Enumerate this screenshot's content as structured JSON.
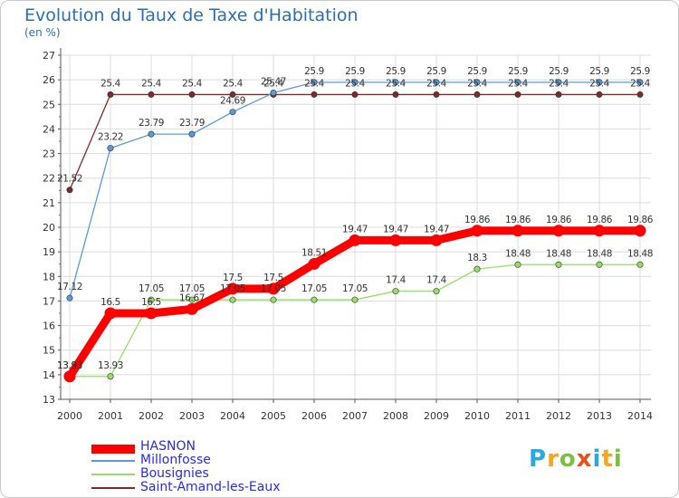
{
  "header": {
    "title": "Evolution du Taux de Taxe d'Habitation",
    "unit": "(en %)"
  },
  "chart_data": {
    "type": "line",
    "title": "Evolution du Taux de Taxe d'Habitation",
    "ylabel": "(en %)",
    "xlabel": "",
    "x": [
      "2000",
      "2001",
      "2002",
      "2003",
      "2004",
      "2005",
      "2006",
      "2007",
      "2008",
      "2009",
      "2010",
      "2011",
      "2012",
      "2013",
      "2014"
    ],
    "ylim": [
      13,
      27
    ],
    "yticks": [
      "13",
      "14",
      "15",
      "16",
      "17",
      "18",
      "19",
      "20",
      "21",
      "22",
      "23",
      "24",
      "25",
      "26",
      "27"
    ],
    "grid": true,
    "legend_position": "bottom-left",
    "series": [
      {
        "name": "HASNON",
        "color": "#ff0000",
        "values": [
          13.93,
          16.5,
          16.5,
          16.67,
          17.5,
          17.5,
          18.51,
          19.47,
          19.47,
          19.47,
          19.86,
          19.86,
          19.86,
          19.86,
          19.86
        ],
        "labels": [
          "13.93",
          "16.5",
          "16.5",
          "16.67",
          "17.5",
          "17.5",
          "18.51",
          "19.47",
          "19.47",
          "19.47",
          "19.86",
          "19.86",
          "19.86",
          "19.86",
          "19.86"
        ]
      },
      {
        "name": "Millonfosse",
        "color": "#5b9bd5",
        "values": [
          17.12,
          23.22,
          23.79,
          23.79,
          24.69,
          25.47,
          25.9,
          25.9,
          25.9,
          25.9,
          25.9,
          25.9,
          25.9,
          25.9,
          25.9
        ],
        "labels": [
          "17.12",
          "23.22",
          "23.79",
          "23.79",
          "24.69",
          "25.47",
          "25.9",
          "25.9",
          "25.9",
          "25.9",
          "25.9",
          "25.9",
          "25.9",
          "25.9",
          "25.9"
        ]
      },
      {
        "name": "Bousignies",
        "color": "#99dd66",
        "values": [
          13.93,
          13.93,
          17.05,
          17.05,
          17.05,
          17.05,
          17.05,
          17.05,
          17.4,
          17.4,
          18.3,
          18.48,
          18.48,
          18.48,
          18.48
        ],
        "labels": [
          "13.93",
          "13.93",
          "17.05",
          "17.05",
          "17.05",
          "17.05",
          "17.05",
          "17.05",
          "17.4",
          "17.4",
          "18.3",
          "18.48",
          "18.48",
          "18.48",
          "18.48"
        ]
      },
      {
        "name": "Saint-Amand-les-Eaux",
        "color": "#7a2b2b",
        "values": [
          21.52,
          25.4,
          25.4,
          25.4,
          25.4,
          25.4,
          25.4,
          25.4,
          25.4,
          25.4,
          25.4,
          25.4,
          25.4,
          25.4,
          25.4
        ],
        "labels": [
          "21.52",
          "25.4",
          "25.4",
          "25.4",
          "25.4",
          "25.4",
          "25.4",
          "25.4",
          "25.4",
          "25.4",
          "25.4",
          "25.4",
          "25.4",
          "25.4",
          "25.4"
        ]
      }
    ]
  },
  "logo": {
    "text": "Proxiti",
    "colors": [
      "#2aa9e0",
      "#f5a623",
      "#7ac143",
      "#e94e1b",
      "#2aa9e0",
      "#f5a623",
      "#7ac143"
    ]
  }
}
